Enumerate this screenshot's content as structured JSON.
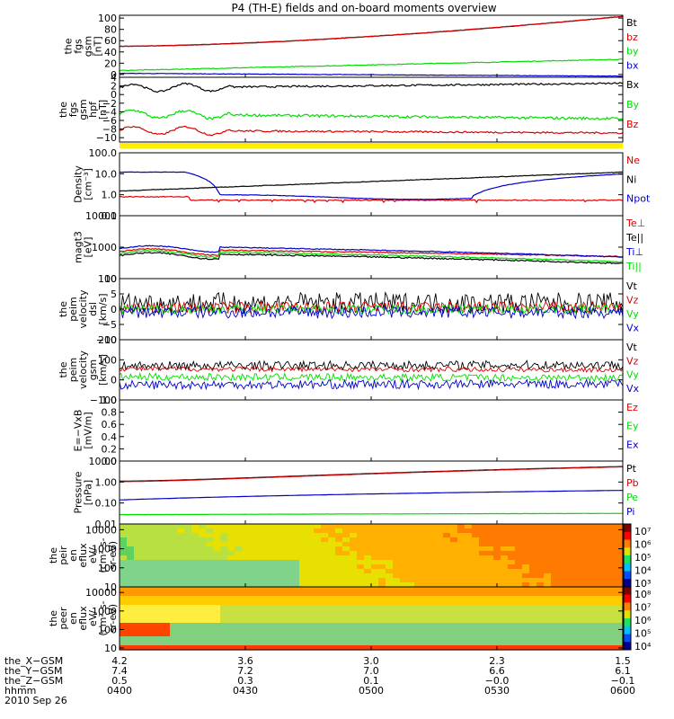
{
  "title": "P4 (TH-E) fields and on-board moments overview",
  "colors": {
    "black": "#000000",
    "red": "#dd0000",
    "green": "#00dd00",
    "blue": "#0000cc",
    "yellow": "#ffee00"
  },
  "chart_data": [
    {
      "type": "line",
      "panel": "fgs_gsm",
      "ylabel": [
        "the",
        "fgs",
        "gsm",
        "[nT]"
      ],
      "ylim": [
        -5,
        105
      ],
      "yticks": [
        "100",
        "80",
        "60",
        "40",
        "20",
        "0"
      ],
      "ytick_values": [
        100,
        80,
        60,
        40,
        20,
        0
      ],
      "series": [
        {
          "name": "Bt",
          "color": "#000000",
          "start": 50,
          "end": 103,
          "noise": 0.4,
          "curve": "exp"
        },
        {
          "name": "bz",
          "color": "#dd0000",
          "start": 50,
          "end": 103,
          "noise": 0.4,
          "curve": "exp"
        },
        {
          "name": "by",
          "color": "#00dd00",
          "start": 7,
          "end": 27,
          "noise": 0.6,
          "curve": "lin"
        },
        {
          "name": "bx",
          "color": "#0000cc",
          "start": 2,
          "end": -3,
          "noise": 0.4,
          "curve": "lin"
        }
      ]
    },
    {
      "type": "line",
      "panel": "fgs_gsm_hpf",
      "ylabel": [
        "the",
        "fgs",
        "gsm",
        "hpf",
        "[nT]"
      ],
      "ylim": [
        -11,
        4
      ],
      "yticks": [
        "4",
        "2",
        "0",
        "−2",
        "−4",
        "−6",
        "−8",
        "−10"
      ],
      "ytick_values": [
        4,
        2,
        0,
        -2,
        -4,
        -6,
        -8,
        -10
      ],
      "series": [
        {
          "name": "Bx",
          "color": "#000000",
          "start": 1.5,
          "end": 2.6,
          "noise": 0.2,
          "curve": "wave"
        },
        {
          "name": "By",
          "color": "#00dd00",
          "start": -4.5,
          "end": -5.6,
          "noise": 0.3,
          "curve": "wave"
        },
        {
          "name": "Bz",
          "color": "#dd0000",
          "start": -8.3,
          "end": -8.9,
          "noise": 0.2,
          "curve": "wave"
        }
      ]
    },
    {
      "type": "line",
      "panel": "density",
      "scale": "log",
      "ylabel": [
        "Density",
        "[cm⁻³]"
      ],
      "ylim": [
        0.1,
        100
      ],
      "yticks": [
        "100.0",
        "10.0",
        "1.0",
        "0.1"
      ],
      "ytick_values": [
        100,
        10,
        1,
        0.1
      ],
      "series": [
        {
          "name": "Ne",
          "color": "#dd0000",
          "start": 0.8,
          "end": 0.55,
          "noise": 0.05,
          "curve": "drop"
        },
        {
          "name": "Ni",
          "color": "#000000",
          "start": 1.5,
          "end": 12,
          "noise": 0.03,
          "curve": "rise"
        },
        {
          "name": "Npot",
          "color": "#0000cc",
          "start": 12,
          "end": 10,
          "noise": 0.02,
          "curve": "pot"
        }
      ]
    },
    {
      "type": "line",
      "panel": "temperature",
      "scale": "log",
      "ylabel": [
        "magt3",
        "[eV]"
      ],
      "ylim": [
        100,
        10000
      ],
      "yticks": [
        "10000",
        "1000",
        "100"
      ],
      "ytick_values": [
        10000,
        1000,
        100
      ],
      "series": [
        {
          "name": "Te⊥",
          "color": "#dd0000",
          "start": 800,
          "end": 500,
          "noise": 0.04,
          "curve": "temp"
        },
        {
          "name": "Te||",
          "color": "#000000",
          "start": 600,
          "end": 300,
          "noise": 0.05,
          "curve": "temp"
        },
        {
          "name": "Ti⊥",
          "color": "#0000cc",
          "start": 1000,
          "end": 480,
          "noise": 0.03,
          "curve": "temp"
        },
        {
          "name": "Ti||",
          "color": "#00dd00",
          "start": 700,
          "end": 340,
          "noise": 0.04,
          "curve": "temp"
        }
      ]
    },
    {
      "type": "line",
      "panel": "velocity_dsl",
      "ylabel": [
        "the",
        "peim",
        "velocity",
        "dsl",
        "[km/s]"
      ],
      "ylim": [
        -10,
        10
      ],
      "yticks": [
        "10",
        "5",
        "0",
        "−5",
        "−10"
      ],
      "ytick_values": [
        10,
        5,
        0,
        -5,
        -10
      ],
      "series": [
        {
          "name": "Vt",
          "color": "#000000",
          "start": 2,
          "end": 2,
          "noise": 3.5,
          "curve": "flat"
        },
        {
          "name": "Vz",
          "color": "#dd0000",
          "start": 0.5,
          "end": 0.5,
          "noise": 2.0,
          "curve": "flat"
        },
        {
          "name": "Vy",
          "color": "#00dd00",
          "start": 0,
          "end": 0,
          "noise": 1.5,
          "curve": "flat"
        },
        {
          "name": "Vx",
          "color": "#0000cc",
          "start": -1,
          "end": -1,
          "noise": 2.0,
          "curve": "flat"
        }
      ]
    },
    {
      "type": "line",
      "panel": "velocity_gsm",
      "ylabel": [
        "the",
        "peim",
        "velocity",
        "gsm",
        "[km/s]"
      ],
      "ylim": [
        -100,
        200
      ],
      "yticks": [
        "200",
        "100",
        "0",
        "−100"
      ],
      "ytick_values": [
        200,
        100,
        0,
        -100
      ],
      "series": [
        {
          "name": "Vt",
          "color": "#000000",
          "start": 70,
          "end": 75,
          "noise": 22,
          "curve": "flat"
        },
        {
          "name": "Vz",
          "color": "#dd0000",
          "start": 55,
          "end": 50,
          "noise": 12,
          "curve": "flat"
        },
        {
          "name": "Vy",
          "color": "#00dd00",
          "start": 15,
          "end": 10,
          "noise": 18,
          "curve": "flat"
        },
        {
          "name": "Vx",
          "color": "#0000cc",
          "start": -25,
          "end": -20,
          "noise": 22,
          "curve": "flat"
        }
      ]
    },
    {
      "type": "line",
      "panel": "efield",
      "ylabel": [
        "E=−VxB",
        "[mV/m]"
      ],
      "ylim": [
        0,
        1
      ],
      "yticks": [
        "1.0",
        "0.8",
        "0.6",
        "0.4",
        "0.2",
        "0.0"
      ],
      "ytick_values": [
        1,
        0.8,
        0.6,
        0.4,
        0.2,
        0
      ],
      "series": [
        {
          "name": "Ez",
          "color": "#dd0000",
          "values": []
        },
        {
          "name": "Ey",
          "color": "#00dd00",
          "values": []
        },
        {
          "name": "Ex",
          "color": "#0000cc",
          "values": []
        }
      ]
    },
    {
      "type": "line",
      "panel": "pressure",
      "scale": "log",
      "ylabel": [
        "Pressure",
        "[nPa]"
      ],
      "ylim": [
        0.01,
        10
      ],
      "yticks": [
        "10.00",
        "1.00",
        "0.10",
        "0.01"
      ],
      "ytick_values": [
        10,
        1,
        0.1,
        0.01
      ],
      "series": [
        {
          "name": "Pt",
          "color": "#000000",
          "start": 1.1,
          "end": 5.5,
          "noise": 0.005,
          "curve": "exp"
        },
        {
          "name": "Pb",
          "color": "#dd0000",
          "start": 1.05,
          "end": 5.3,
          "noise": 0.005,
          "curve": "exp"
        },
        {
          "name": "Pe",
          "color": "#00dd00",
          "start": 0.028,
          "end": 0.032,
          "noise": 0.01,
          "curve": "lin"
        },
        {
          "name": "Pi",
          "color": "#0000cc",
          "start": 0.14,
          "end": 0.4,
          "noise": 0.005,
          "curve": "lin"
        }
      ]
    },
    {
      "type": "heatmap",
      "panel": "ion_spectrogram",
      "ylabel": [
        "the",
        "peir",
        "en",
        "eflux",
        "eV/",
        "(cm²-s-",
        "sr-eV)"
      ],
      "ylim": [
        10,
        20000
      ],
      "yticks": [
        "10000",
        "1000",
        "100",
        "10"
      ],
      "ytick_values": [
        10000,
        1000,
        100,
        10
      ],
      "colorbar": {
        "ticks": [
          "10⁷",
          "10⁶",
          "10⁵",
          "10⁴",
          "10³"
        ]
      }
    },
    {
      "type": "heatmap",
      "panel": "electron_spectrogram",
      "ylabel": [
        "the",
        "peer",
        "en",
        "eflux",
        "eV/",
        "(cm²-s-",
        "sr-eV)"
      ],
      "ylim": [
        8,
        20000
      ],
      "yticks": [
        "10000",
        "1000",
        "100",
        "10"
      ],
      "ytick_values": [
        10000,
        1000,
        100,
        10
      ],
      "colorbar": {
        "ticks": [
          "10⁸",
          "10⁷",
          "10⁶",
          "10⁵",
          "10⁴"
        ]
      }
    }
  ],
  "x_axis": {
    "rows": [
      {
        "label": "the_X−GSM",
        "values": [
          "4.2",
          "3.6",
          "3.0",
          "2.3",
          "1.5"
        ]
      },
      {
        "label": "the_Y−GSM",
        "values": [
          "7.4",
          "7.2",
          "7.0",
          "6.6",
          "6.1"
        ]
      },
      {
        "label": "the_Z−GSM",
        "values": [
          "0.5",
          "0.3",
          "0.1",
          "−0.0",
          "−0.1"
        ]
      },
      {
        "label": "hhmm",
        "values": [
          "0400",
          "0430",
          "0500",
          "0530",
          "0600"
        ]
      }
    ],
    "date": "2010 Sep 26"
  }
}
